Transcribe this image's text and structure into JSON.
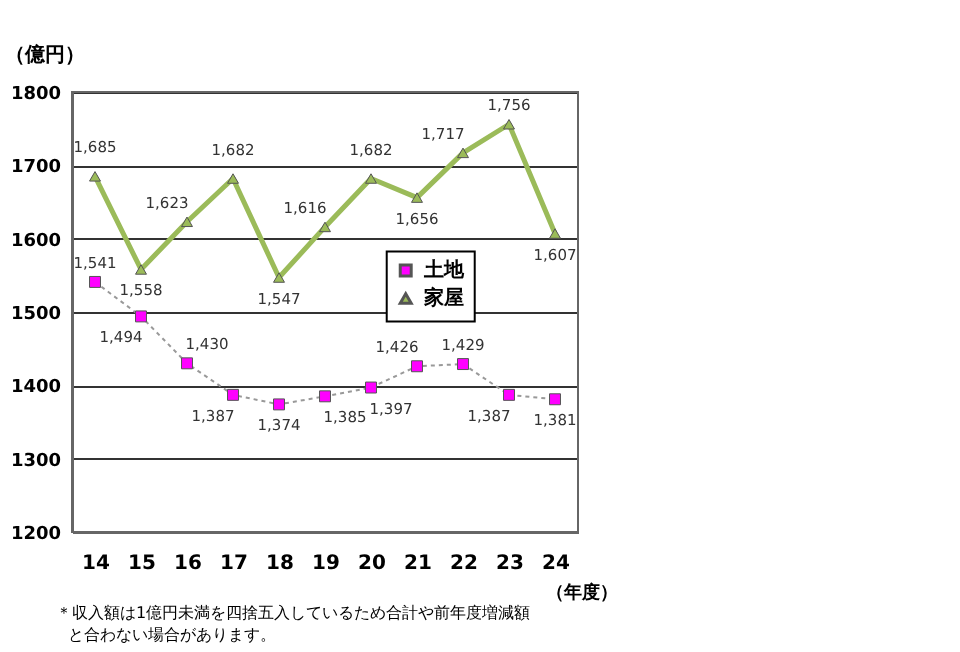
{
  "chart_data": {
    "type": "line",
    "ylabel": "（億円）",
    "xlabel": "（年度）",
    "categories": [
      "14",
      "15",
      "16",
      "17",
      "18",
      "19",
      "20",
      "21",
      "22",
      "23",
      "24"
    ],
    "series": [
      {
        "name": "土地",
        "color": "#ff00ff",
        "marker": "square",
        "line_style": "dotted",
        "values": [
          1541,
          1494,
          1430,
          1387,
          1374,
          1385,
          1397,
          1426,
          1429,
          1387,
          1381
        ],
        "value_labels": [
          "1,541",
          "1,494",
          "1,430",
          "1,387",
          "1,374",
          "1,385",
          "1,397",
          "1,426",
          "1,429",
          "1,387",
          "1,381"
        ]
      },
      {
        "name": "家屋",
        "color": "#9bbb59",
        "marker": "triangle",
        "line_style": "solid",
        "values": [
          1685,
          1558,
          1623,
          1682,
          1547,
          1616,
          1682,
          1656,
          1717,
          1756,
          1607
        ],
        "value_labels": [
          "1,685",
          "1,558",
          "1,623",
          "1,682",
          "1,547",
          "1,616",
          "1,682",
          "1,656",
          "1,717",
          "1,756",
          "1,607"
        ]
      }
    ],
    "ylim": [
      1200,
      1800
    ],
    "yticks": [
      1200,
      1300,
      1400,
      1500,
      1600,
      1700,
      1800
    ],
    "grid": "y",
    "legend": "right",
    "annotations": [
      "＊収入額は1億円未満を四捨五入しているため合計や前年度増減額",
      "と合わない場合があります。"
    ]
  }
}
